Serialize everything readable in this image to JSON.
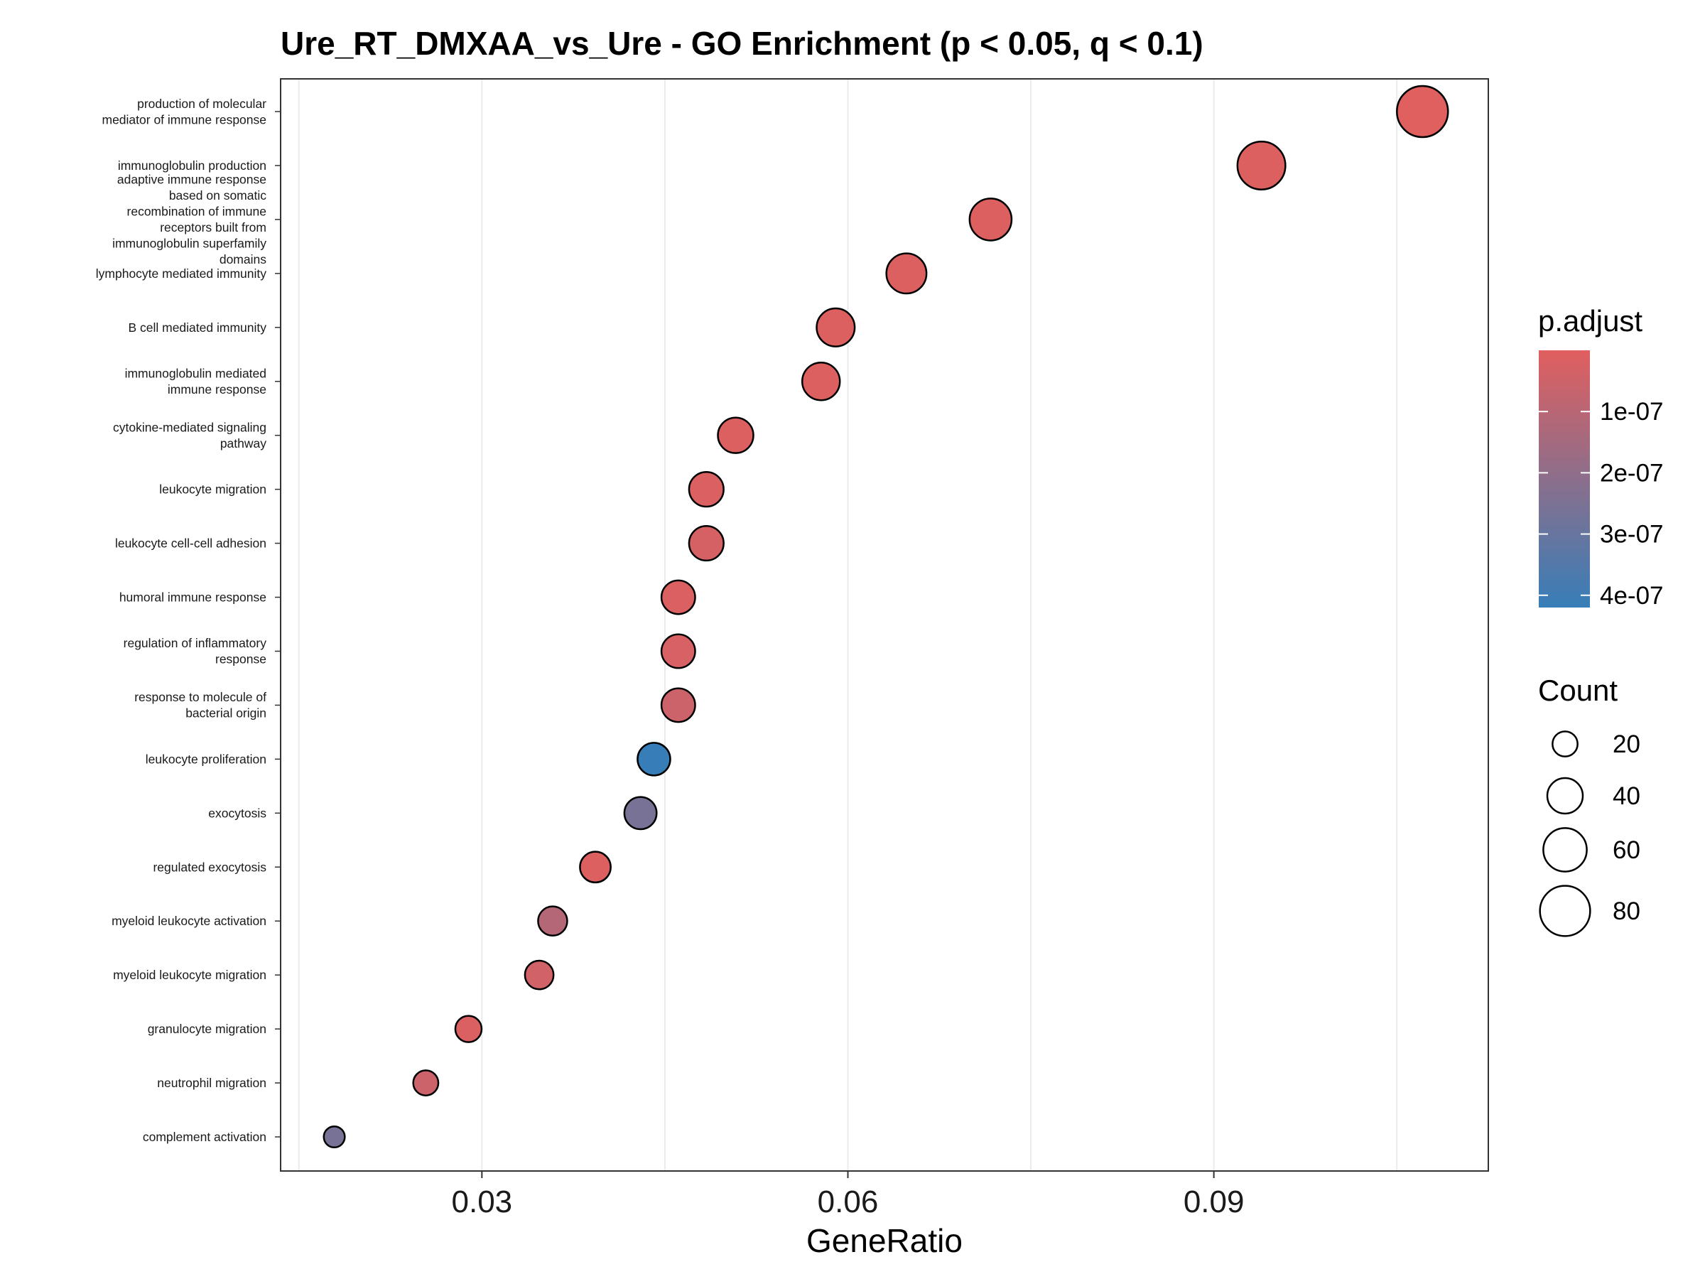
{
  "chart_data": {
    "type": "scatter",
    "title": "Ure_RT_DMXAA_vs_Ure - GO Enrichment (p < 0.05, q < 0.1)",
    "xlabel": "GeneRatio",
    "ylabel": "",
    "xlim": [
      0.0135,
      0.1125
    ],
    "xticks": [
      0.03,
      0.06,
      0.09
    ],
    "xtick_labels": [
      "0.03",
      "0.06",
      "0.09"
    ],
    "grid": true,
    "legend_position": "right",
    "categories": [
      "production of molecular\nmediator of immune response",
      "immunoglobulin production",
      "adaptive immune response\nbased on somatic\nrecombination of immune\nreceptors built from\nimmunoglobulin superfamily\ndomains",
      "lymphocyte mediated immunity",
      "B cell mediated immunity",
      "immunoglobulin mediated\nimmune response",
      "cytokine-mediated signaling\npathway",
      "leukocyte migration",
      "leukocyte cell-cell adhesion",
      "humoral immune response",
      "regulation of inflammatory\nresponse",
      "response to molecule of\nbacterial origin",
      "leukocyte proliferation",
      "exocytosis",
      "regulated exocytosis",
      "myeloid leukocyte activation",
      "myeloid leukocyte migration",
      "granulocyte migration",
      "neutrophil migration",
      "complement activation"
    ],
    "points": [
      {
        "term": "production of molecular\nmediator of immune response",
        "gene_ratio": 0.1071,
        "count": 83,
        "p_adjust": 2e-09
      },
      {
        "term": "immunoglobulin production",
        "gene_ratio": 0.0939,
        "count": 73,
        "p_adjust": 1e-08
      },
      {
        "term": "adaptive immune response\nbased on somatic\nrecombination of immune\nreceptors built from\nimmunoglobulin superfamily\ndomains",
        "gene_ratio": 0.0717,
        "count": 56,
        "p_adjust": 1e-08
      },
      {
        "term": "lymphocyte mediated immunity",
        "gene_ratio": 0.0648,
        "count": 51,
        "p_adjust": 1e-08
      },
      {
        "term": "B cell mediated immunity",
        "gene_ratio": 0.059,
        "count": 46,
        "p_adjust": 1e-08
      },
      {
        "term": "immunoglobulin mediated\nimmune response",
        "gene_ratio": 0.0578,
        "count": 45,
        "p_adjust": 1e-08
      },
      {
        "term": "cytokine-mediated signaling\npathway",
        "gene_ratio": 0.0508,
        "count": 40,
        "p_adjust": 1e-08
      },
      {
        "term": "leukocyte migration",
        "gene_ratio": 0.0484,
        "count": 38,
        "p_adjust": 1.5e-08
      },
      {
        "term": "leukocyte cell-cell adhesion",
        "gene_ratio": 0.0484,
        "count": 38,
        "p_adjust": 3e-08
      },
      {
        "term": "humoral immune response",
        "gene_ratio": 0.0461,
        "count": 36,
        "p_adjust": 1.5e-08
      },
      {
        "term": "regulation of inflammatory\nresponse",
        "gene_ratio": 0.0461,
        "count": 36,
        "p_adjust": 2.5e-08
      },
      {
        "term": "response to molecule of\nbacterial origin",
        "gene_ratio": 0.0461,
        "count": 36,
        "p_adjust": 5e-08
      },
      {
        "term": "leukocyte proliferation",
        "gene_ratio": 0.0441,
        "count": 34,
        "p_adjust": 4.2e-07
      },
      {
        "term": "exocytosis",
        "gene_ratio": 0.043,
        "count": 33,
        "p_adjust": 2.6e-07
      },
      {
        "term": "regulated exocytosis",
        "gene_ratio": 0.0393,
        "count": 30,
        "p_adjust": 1e-08
      },
      {
        "term": "myeloid leukocyte activation",
        "gene_ratio": 0.0358,
        "count": 27,
        "p_adjust": 1.1e-07
      },
      {
        "term": "myeloid leukocyte migration",
        "gene_ratio": 0.0347,
        "count": 26,
        "p_adjust": 4e-08
      },
      {
        "term": "granulocyte migration",
        "gene_ratio": 0.0289,
        "count": 22,
        "p_adjust": 1.5e-08
      },
      {
        "term": "neutrophil migration",
        "gene_ratio": 0.0254,
        "count": 20,
        "p_adjust": 5e-08
      },
      {
        "term": "complement activation",
        "gene_ratio": 0.0179,
        "count": 14,
        "p_adjust": 2.6e-07
      }
    ],
    "color_legend": {
      "title": "p.adjust",
      "low_color": "#e15f5f",
      "high_color": "#377eb8",
      "ticks": [
        1e-07,
        2e-07,
        3e-07,
        4e-07
      ],
      "tick_labels": [
        "1e-07",
        "2e-07",
        "3e-07",
        "4e-07"
      ],
      "range": [
        0,
        4.2e-07
      ]
    },
    "size_legend": {
      "title": "Count",
      "values": [
        20,
        40,
        60,
        80
      ],
      "labels": [
        "20",
        "40",
        "60",
        "80"
      ]
    }
  }
}
